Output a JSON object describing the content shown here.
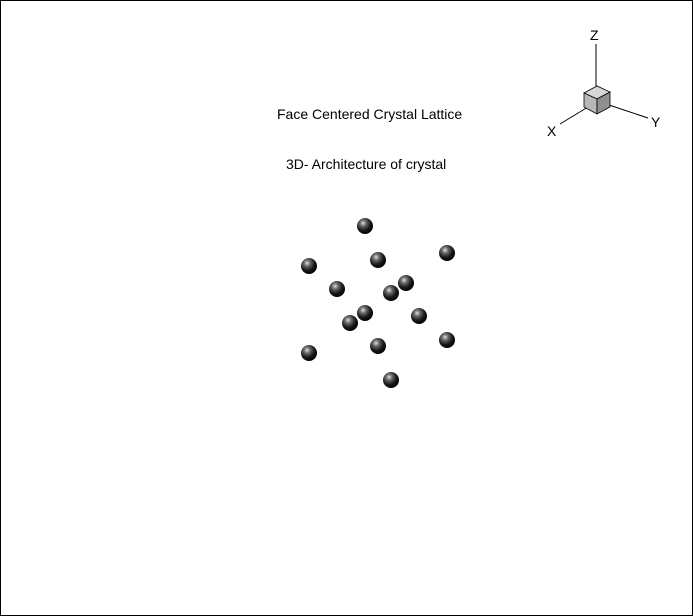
{
  "title": "Face Centered Crystal Lattice",
  "subtitle": "3D- Architecture of crystal",
  "orientation_axes": {
    "labels": {
      "x": "X",
      "y": "Y",
      "z": "Z"
    },
    "line_color": "#000000",
    "cube_color": "#b8b8b8"
  },
  "atoms": {
    "count": 14,
    "color": "#1a1a1a",
    "highlight_color": "#e0e0e0"
  },
  "colors": {
    "background": "#ffffff",
    "border": "#000000",
    "text": "#000000"
  }
}
